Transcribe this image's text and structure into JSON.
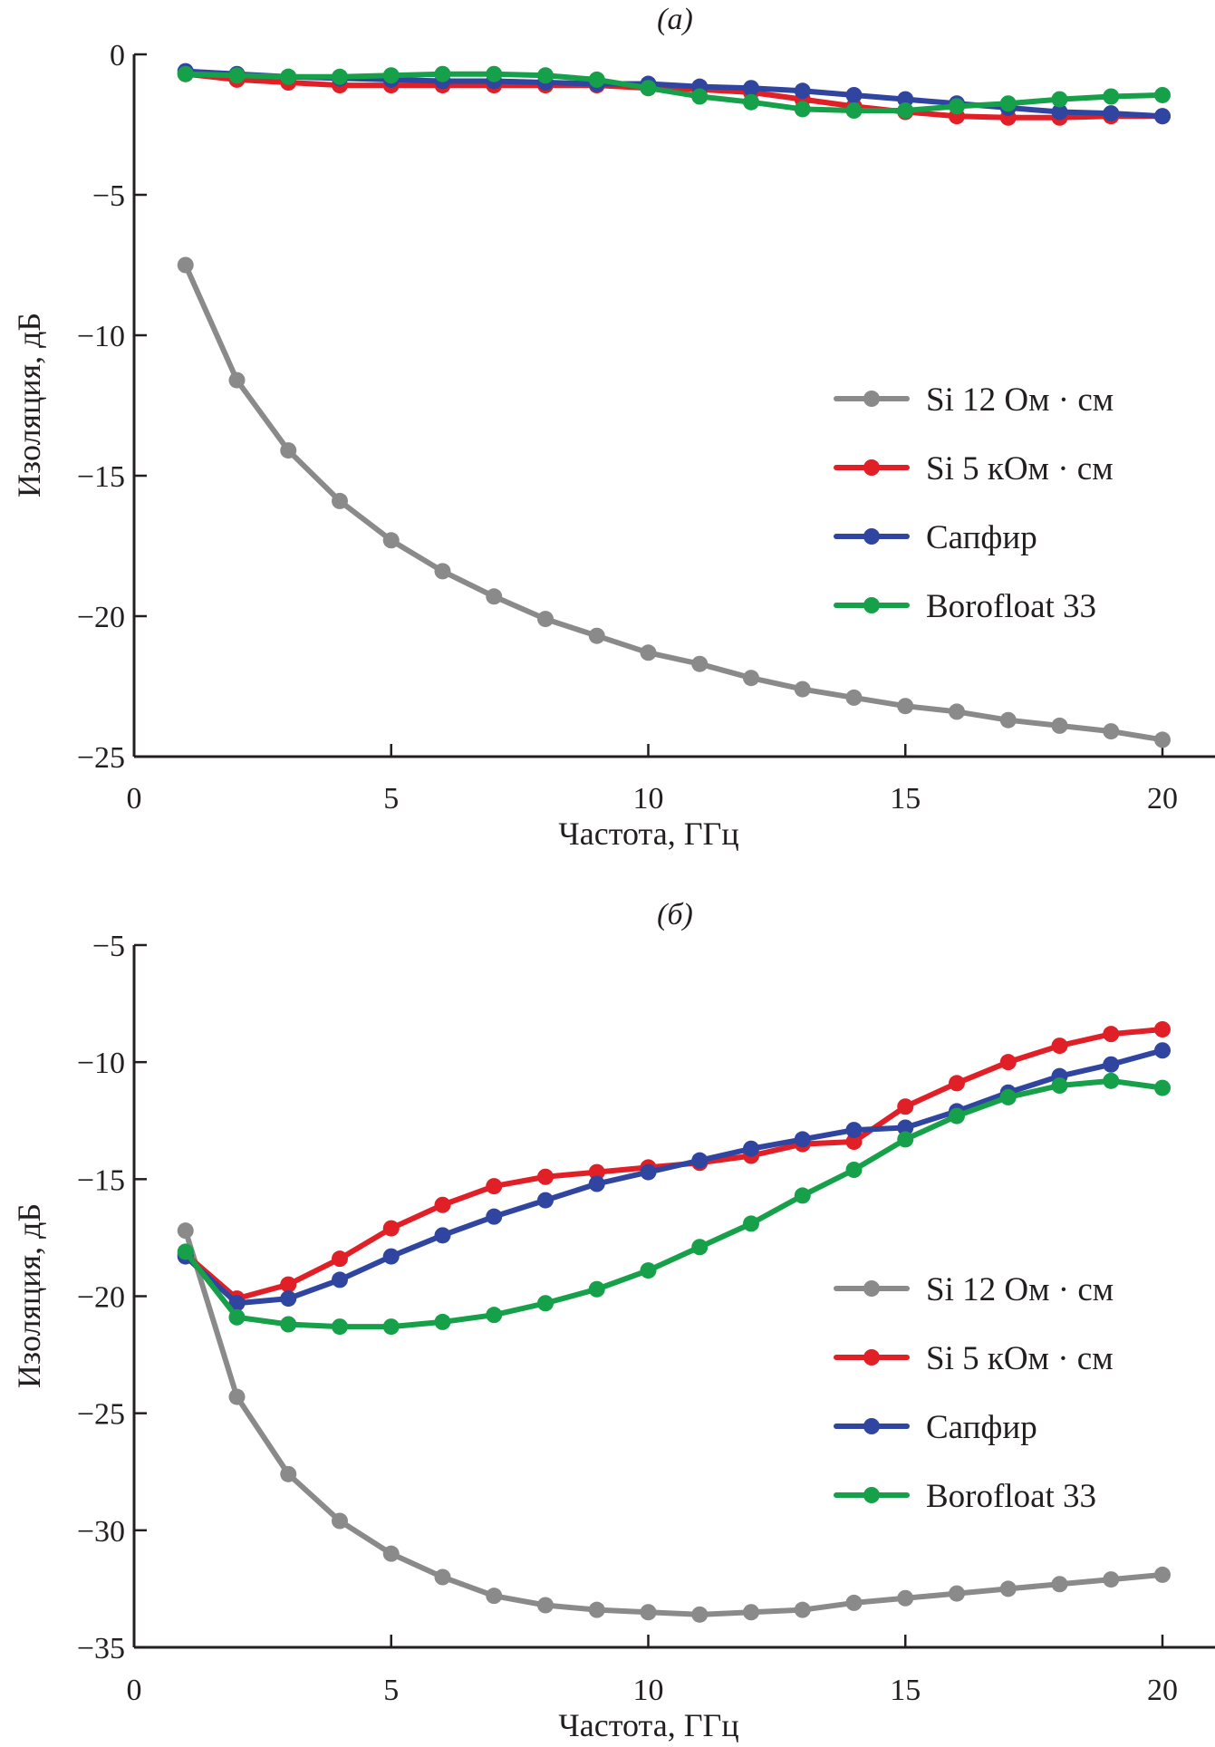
{
  "chart_data": [
    {
      "type": "line",
      "title": "(а)",
      "xlabel": "Частота, ГГц",
      "ylabel": "Изоляция, дБ",
      "xlim": [
        0,
        21
      ],
      "ylim": [
        -25,
        0
      ],
      "xticks": [
        0,
        5,
        10,
        15,
        20
      ],
      "yticks": [
        0,
        -5,
        -10,
        -15,
        -20,
        -25
      ],
      "xtick_labels": [
        "0",
        "5",
        "10",
        "15",
        "20"
      ],
      "ytick_labels": [
        "0",
        "−5",
        "−10",
        "−15",
        "−20",
        "−25"
      ],
      "grid": false,
      "legend_position": "right",
      "x": [
        1,
        2,
        3,
        4,
        5,
        6,
        7,
        8,
        9,
        10,
        11,
        12,
        13,
        14,
        15,
        16,
        17,
        18,
        19,
        20
      ],
      "series": [
        {
          "name": "Si 12 Ом · см",
          "color": "#8a8a8a",
          "values": [
            -7.5,
            -11.6,
            -14.1,
            -15.9,
            -17.3,
            -18.4,
            -19.3,
            -20.1,
            -20.7,
            -21.3,
            -21.7,
            -22.2,
            -22.6,
            -22.9,
            -23.2,
            -23.4,
            -23.7,
            -23.9,
            -24.1,
            -24.4
          ]
        },
        {
          "name": "Si 5 кОм · см",
          "color": "#e11f26",
          "values": [
            -0.7,
            -0.9,
            -1.0,
            -1.1,
            -1.1,
            -1.1,
            -1.1,
            -1.1,
            -1.1,
            -1.2,
            -1.25,
            -1.35,
            -1.6,
            -1.85,
            -2.05,
            -2.2,
            -2.25,
            -2.25,
            -2.2,
            -2.2
          ]
        },
        {
          "name": "Сапфир",
          "color": "#2f45a0",
          "values": [
            -0.6,
            -0.7,
            -0.8,
            -0.85,
            -0.9,
            -0.95,
            -0.95,
            -1.0,
            -1.05,
            -1.05,
            -1.15,
            -1.2,
            -1.3,
            -1.45,
            -1.6,
            -1.75,
            -1.9,
            -2.05,
            -2.1,
            -2.2
          ]
        },
        {
          "name": "Borofloat 33",
          "color": "#16a04a",
          "values": [
            -0.7,
            -0.75,
            -0.8,
            -0.8,
            -0.75,
            -0.7,
            -0.7,
            -0.75,
            -0.9,
            -1.2,
            -1.5,
            -1.7,
            -1.95,
            -2.0,
            -2.0,
            -1.85,
            -1.75,
            -1.6,
            -1.5,
            -1.45
          ]
        }
      ]
    },
    {
      "type": "line",
      "title": "(б)",
      "xlabel": "Частота, ГГц",
      "ylabel": "Изоляция, дБ",
      "xlim": [
        0,
        21
      ],
      "ylim": [
        -35,
        -5
      ],
      "xticks": [
        0,
        5,
        10,
        15,
        20
      ],
      "yticks": [
        -5,
        -10,
        -15,
        -20,
        -25,
        -30,
        -35
      ],
      "xtick_labels": [
        "0",
        "5",
        "10",
        "15",
        "20"
      ],
      "ytick_labels": [
        "−5",
        "−10",
        "−15",
        "−20",
        "−25",
        "−30",
        "−35"
      ],
      "grid": false,
      "legend_position": "right",
      "x": [
        1,
        2,
        3,
        4,
        5,
        6,
        7,
        8,
        9,
        10,
        11,
        12,
        13,
        14,
        15,
        16,
        17,
        18,
        19,
        20
      ],
      "series": [
        {
          "name": "Si 12 Ом · см",
          "color": "#8a8a8a",
          "values": [
            -17.2,
            -24.3,
            -27.6,
            -29.6,
            -31.0,
            -32.0,
            -32.8,
            -33.2,
            -33.4,
            -33.5,
            -33.6,
            -33.5,
            -33.4,
            -33.1,
            -32.9,
            -32.7,
            -32.5,
            -32.3,
            -32.1,
            -31.9
          ]
        },
        {
          "name": "Si 5 кОм · см",
          "color": "#e11f26",
          "values": [
            -18.2,
            -20.1,
            -19.5,
            -18.4,
            -17.1,
            -16.1,
            -15.3,
            -14.9,
            -14.7,
            -14.5,
            -14.3,
            -14.0,
            -13.5,
            -13.4,
            -11.9,
            -10.9,
            -10.0,
            -9.3,
            -8.8,
            -8.6
          ]
        },
        {
          "name": "Сапфир",
          "color": "#2f45a0",
          "values": [
            -18.3,
            -20.3,
            -20.1,
            -19.3,
            -18.3,
            -17.4,
            -16.6,
            -15.9,
            -15.2,
            -14.7,
            -14.2,
            -13.7,
            -13.3,
            -12.9,
            -12.8,
            -12.1,
            -11.3,
            -10.6,
            -10.1,
            -9.5
          ]
        },
        {
          "name": "Borofloat 33",
          "color": "#16a04a",
          "values": [
            -18.1,
            -20.9,
            -21.2,
            -21.3,
            -21.3,
            -21.1,
            -20.8,
            -20.3,
            -19.7,
            -18.9,
            -17.9,
            -16.9,
            -15.7,
            -14.6,
            -13.3,
            -12.3,
            -11.5,
            -11.0,
            -10.8,
            -11.1
          ]
        }
      ]
    }
  ]
}
